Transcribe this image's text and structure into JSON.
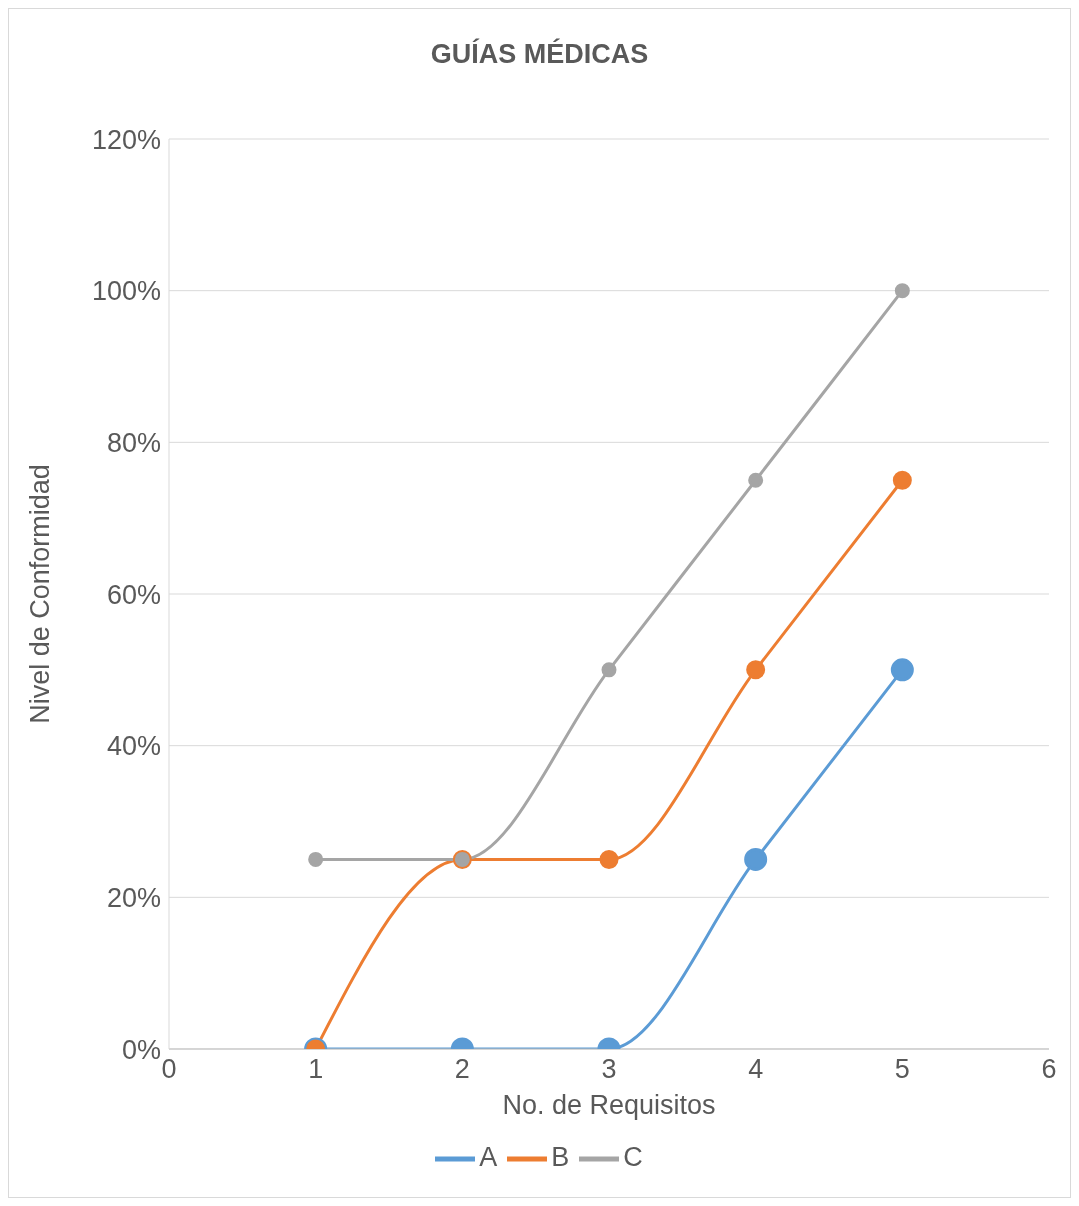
{
  "chart_data": {
    "type": "line",
    "title": "GUÍAS MÉDICAS",
    "xlabel": "No. de Requisitos",
    "ylabel": "Nivel de Conformidad",
    "x": [
      1,
      2,
      3,
      4,
      5
    ],
    "series": [
      {
        "name": "A",
        "color": "#5b9bd5",
        "values": [
          0,
          0,
          0,
          25,
          50
        ]
      },
      {
        "name": "B",
        "color": "#ed7d31",
        "values": [
          0,
          25,
          25,
          50,
          75
        ]
      },
      {
        "name": "C",
        "color": "#a5a5a5",
        "values": [
          25,
          25,
          50,
          75,
          100
        ]
      }
    ],
    "xlim": [
      0,
      6
    ],
    "xticks": [
      0,
      1,
      2,
      3,
      4,
      5,
      6
    ],
    "ylim": [
      0,
      120
    ],
    "yticks": [
      {
        "value": 0,
        "label": "0%"
      },
      {
        "value": 20,
        "label": "20%"
      },
      {
        "value": 40,
        "label": "40%"
      },
      {
        "value": 60,
        "label": "60%"
      },
      {
        "value": 80,
        "label": "80%"
      },
      {
        "value": 100,
        "label": "100%"
      },
      {
        "value": 120,
        "label": "120%"
      }
    ],
    "grid": "y",
    "legend": "bottom",
    "marker": "circle",
    "line_style": "solid"
  }
}
